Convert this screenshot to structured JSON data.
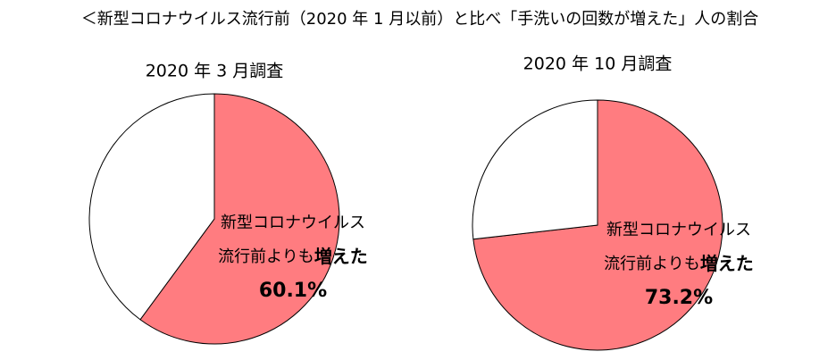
{
  "title": "＜新型コロナウイルス流行前（2020 年 1 月以前）と比べ「手洗いの回数が増えた」人の割合",
  "chart_data": [
    {
      "type": "pie",
      "title": "2020 年 3 月調査",
      "categories": [
        "新型コロナウイルス流行前よりも増えた",
        null
      ],
      "values": [
        60.1,
        39.9
      ],
      "value_labels": [
        "60.1%",
        null
      ],
      "colors": [
        "#ff7c80",
        "#ffffff"
      ]
    },
    {
      "type": "pie",
      "title": "2020 年 10 月調査",
      "categories": [
        "新型コロナウイルス流行前よりも増えた",
        null
      ],
      "values": [
        73.2,
        26.8
      ],
      "value_labels": [
        "73.2%",
        null
      ],
      "colors": [
        "#ff7c80",
        "#ffffff"
      ]
    }
  ]
}
